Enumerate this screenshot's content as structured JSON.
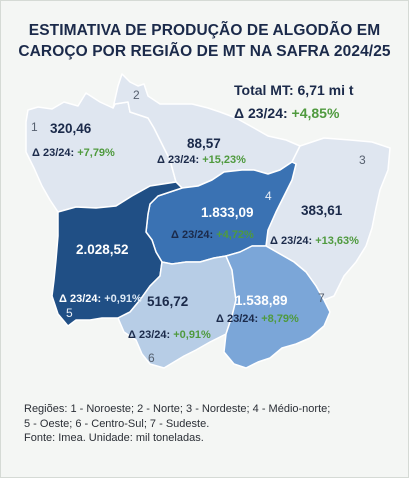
{
  "title_line1": "ESTIMATIVA DE PRODUÇÃO DE ALGODÃO EM",
  "title_line2": "CAROÇO POR REGIÃO DE MT NA SAFRA 2024/25",
  "total_label": "Total MT:",
  "total_value": "6,71 mi t",
  "total_delta_label": "Δ 23/24:",
  "total_delta_value": "+4,85%",
  "delta_prefix": "Δ 23/24:",
  "regions": [
    {
      "number": "1",
      "name": "Noroeste",
      "value": "320,46",
      "delta": "+7,79%",
      "color": "#dfe6f0"
    },
    {
      "number": "2",
      "name": "Norte",
      "value": "88,57",
      "delta": "+15,23%",
      "color": "#dfe6f0"
    },
    {
      "number": "3",
      "name": "Nordeste",
      "value": "383,61",
      "delta": "+13,63%",
      "color": "#dfe6f0"
    },
    {
      "number": "4",
      "name": "Médio-norte",
      "value": "1.833,09",
      "delta": "+4,72%",
      "color": "#3a72b3"
    },
    {
      "number": "5",
      "name": "Oeste",
      "value": "2.028,52",
      "delta": "+0,91%",
      "color": "#204f85"
    },
    {
      "number": "6",
      "name": "Centro-Sul",
      "value": "516,72",
      "delta": "+0,91%",
      "color": "#b7cde6"
    },
    {
      "number": "7",
      "name": "Sudeste",
      "value": "1.538,89",
      "delta": "+8,79%",
      "color": "#7ba6d8"
    }
  ],
  "footer_line1": "Regiões: 1 - Noroeste; 2 - Norte; 3 - Nordeste; 4 - Médio-norte;",
  "footer_line2": "5 - Oeste; 6 - Centro-Sul; 7 - Sudeste.",
  "footer_line3": "Fonte: Imea. Unidade: mil toneladas."
}
